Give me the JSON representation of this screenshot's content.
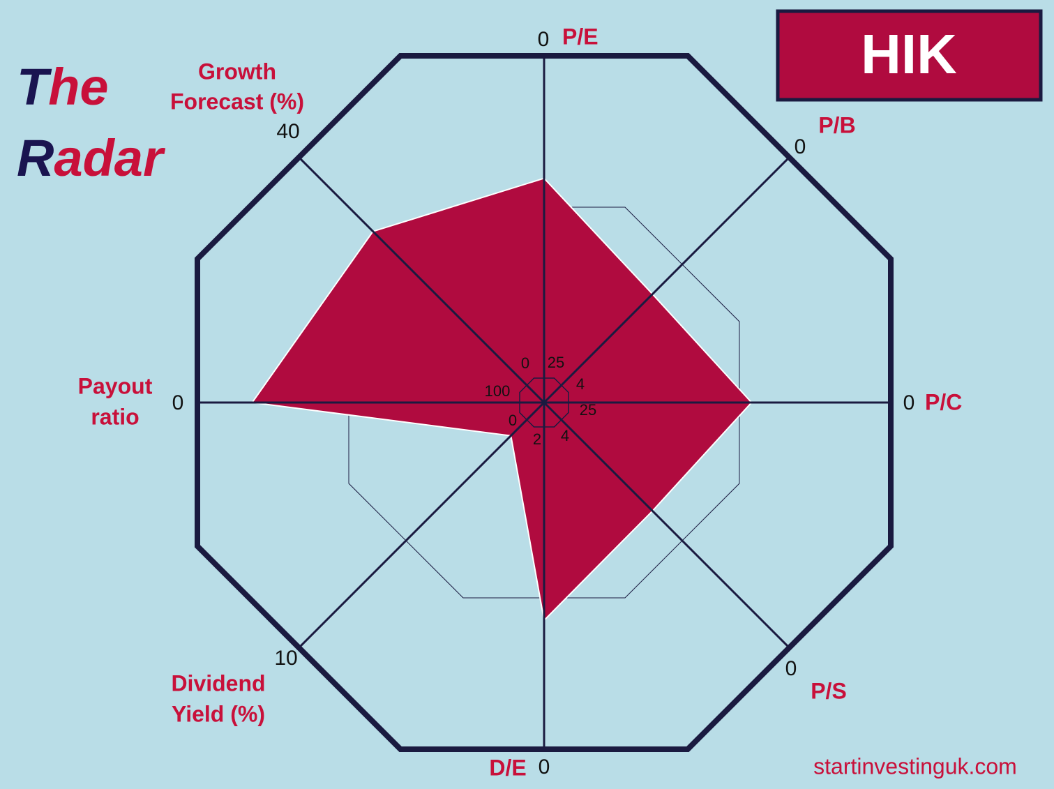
{
  "chart_data": {
    "type": "radar",
    "title": [
      [
        "T",
        "he"
      ],
      [
        "R",
        "adar"
      ]
    ],
    "ticker": "HIK",
    "source": "startinvestinguk.com",
    "color": "#b00b3f",
    "axes": [
      {
        "name": [
          "P/E"
        ],
        "inner": 25,
        "outer": 0,
        "value": 9.5
      },
      {
        "name": [
          "P/B"
        ],
        "inner": 4,
        "outer": 0,
        "value": 2.4
      },
      {
        "name": [
          "P/C"
        ],
        "inner": 25,
        "outer": 0,
        "value": 10.8
      },
      {
        "name": [
          "P/S"
        ],
        "inner": 4,
        "outer": 0,
        "value": 2.4
      },
      {
        "name": [
          "D/E"
        ],
        "inner": 2,
        "outer": 0,
        "value": 0.8
      },
      {
        "name": [
          "Dividend",
          "Yield (%)"
        ],
        "inner": 0,
        "outer": 10,
        "value": 0.7
      },
      {
        "name": [
          "Payout",
          "ratio"
        ],
        "inner": 100,
        "outer": 0,
        "value": 17
      },
      {
        "name": [
          "Growth",
          "Forecast (%)"
        ],
        "inner": 0,
        "outer": 40,
        "value": 27
      }
    ]
  }
}
